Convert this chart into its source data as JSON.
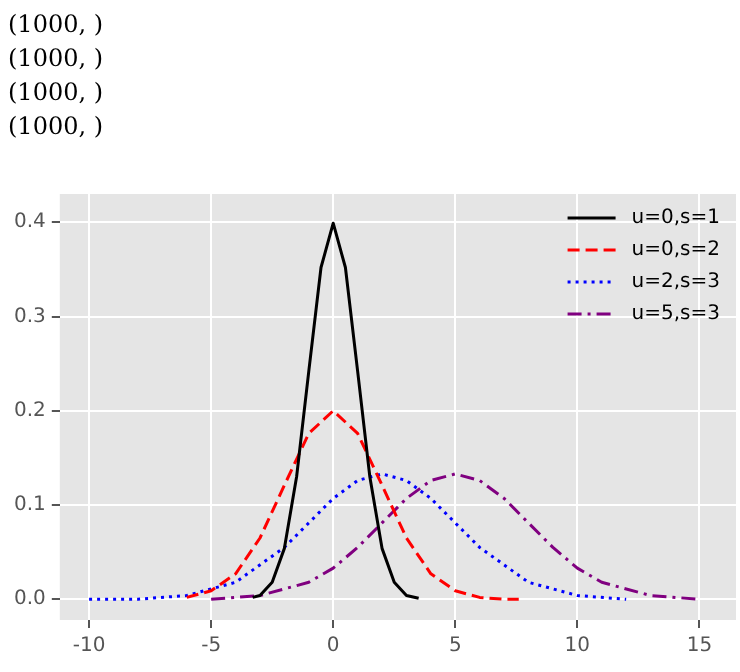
{
  "chart_data": {
    "type": "line",
    "annotations": [
      "(1000, )",
      "(1000, )",
      "(1000, )",
      "(1000, )"
    ],
    "series": [
      {
        "name": "u=0,s=1",
        "color": "#000000",
        "line_style": "solid",
        "x": [
          -3.3,
          -3,
          -2.5,
          -2,
          -1.5,
          -1,
          -0.5,
          0,
          0.5,
          1,
          1.5,
          2,
          2.5,
          3,
          3.5
        ],
        "values": [
          0.002,
          0.004,
          0.018,
          0.054,
          0.13,
          0.242,
          0.352,
          0.399,
          0.352,
          0.242,
          0.13,
          0.054,
          0.018,
          0.004,
          0.001
        ]
      },
      {
        "name": "u=0,s=2",
        "color": "#ff0000",
        "line_style": "dashed",
        "x": [
          -6,
          -5,
          -4,
          -3,
          -2,
          -1,
          0,
          1,
          2,
          3,
          4,
          5,
          6,
          7,
          7.6
        ],
        "values": [
          0.002,
          0.009,
          0.027,
          0.065,
          0.121,
          0.176,
          0.2,
          0.176,
          0.121,
          0.065,
          0.027,
          0.009,
          0.002,
          0.0,
          0.0
        ]
      },
      {
        "name": "u=2,s=3",
        "color": "#0000ff",
        "line_style": "dotted",
        "x": [
          -10,
          -8,
          -6,
          -4,
          -2,
          -1,
          0,
          1,
          2,
          3,
          4,
          5,
          6,
          8,
          10,
          12
        ],
        "values": [
          0.0,
          0.0,
          0.004,
          0.018,
          0.055,
          0.081,
          0.107,
          0.126,
          0.133,
          0.126,
          0.107,
          0.081,
          0.055,
          0.018,
          0.004,
          0.0
        ]
      },
      {
        "name": "u=5,s=3",
        "color": "#800080",
        "line_style": "dashdot",
        "x": [
          -5,
          -3,
          -1,
          0,
          1,
          2,
          3,
          4,
          5,
          6,
          7,
          8,
          9,
          10,
          11,
          13,
          15
        ],
        "values": [
          0.0,
          0.004,
          0.018,
          0.033,
          0.055,
          0.081,
          0.107,
          0.126,
          0.133,
          0.126,
          0.107,
          0.081,
          0.055,
          0.033,
          0.018,
          0.004,
          0.0
        ]
      }
    ],
    "xlim": [
      -11.2,
      16.5
    ],
    "ylim": [
      -0.022,
      0.43
    ],
    "xticks": [
      -10,
      -5,
      0,
      5,
      10,
      15
    ],
    "yticks": [
      {
        "value": 0,
        "label": "0.0"
      },
      0.1,
      0.2,
      0.3,
      0.4
    ],
    "grid": true,
    "legend": "top right",
    "marker": "none"
  }
}
